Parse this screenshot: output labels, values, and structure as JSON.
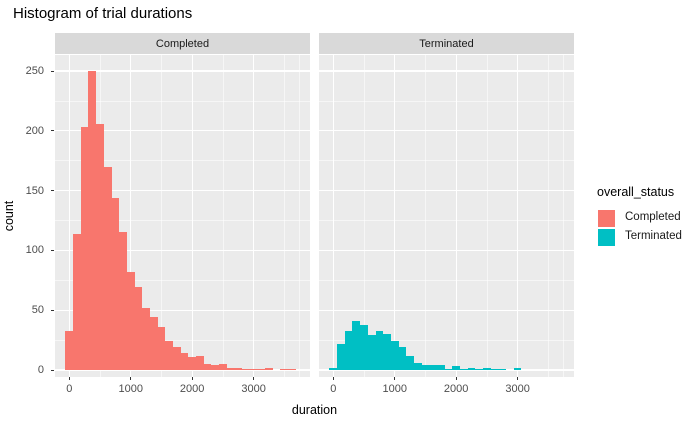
{
  "chart_data": {
    "type": "bar",
    "subtype": "faceted-histogram",
    "title": "Histogram of trial durations",
    "xlabel": "duration",
    "ylabel": "count",
    "facet_labels": [
      "Completed",
      "Terminated"
    ],
    "bin_width": 125,
    "bin_centers": [
      0,
      125,
      250,
      375,
      500,
      625,
      750,
      875,
      1000,
      1125,
      1250,
      1375,
      1500,
      1625,
      1750,
      1875,
      2000,
      2125,
      2250,
      2375,
      2500,
      2625,
      2750,
      2875,
      3000,
      3125,
      3250,
      3375,
      3500,
      3625
    ],
    "series": [
      {
        "name": "Completed",
        "color": "#F8766D",
        "counts": [
          33,
          114,
          203,
          250,
          206,
          170,
          144,
          115,
          82,
          69,
          52,
          44,
          36,
          24,
          19,
          14,
          11,
          12,
          5,
          4,
          5,
          2,
          2,
          1,
          1,
          1,
          2,
          0,
          1,
          1
        ]
      },
      {
        "name": "Terminated",
        "color": "#00BFC4",
        "counts": [
          2,
          22,
          33,
          41,
          38,
          29,
          33,
          30,
          24,
          19,
          12,
          6,
          4,
          4,
          4,
          1,
          3,
          1,
          2,
          1,
          2,
          1,
          1,
          0,
          2,
          0,
          0,
          0,
          0,
          0
        ]
      }
    ],
    "x_ticks": [
      0,
      1000,
      2000,
      3000
    ],
    "x_minor_ticks": [
      500,
      1500,
      2500,
      3500,
      3750
    ],
    "y_ticks": [
      0,
      50,
      100,
      150,
      200,
      250
    ],
    "y_minor_ticks": [
      25,
      75,
      125,
      175,
      225
    ],
    "xlim": [
      -233,
      3918
    ],
    "ylim": [
      -6,
      263
    ],
    "grid": true,
    "legend_position": "right"
  },
  "legend": {
    "title": "overall_status",
    "items": [
      {
        "label": "Completed",
        "color": "#F8766D"
      },
      {
        "label": "Terminated",
        "color": "#00BFC4"
      }
    ]
  },
  "colors": {
    "panel_background": "#EBEBEB",
    "strip_background": "#D9D9D9",
    "grid": "#FFFFFF",
    "axis_text": "#4D4D4D",
    "tick_marks": "#333333"
  }
}
